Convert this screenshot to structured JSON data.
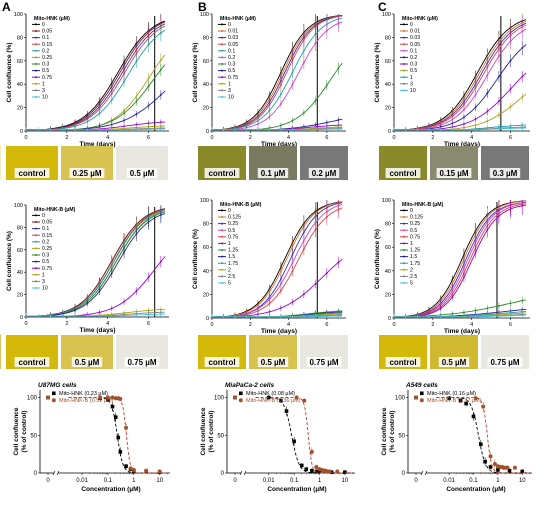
{
  "chart_data": [
    {
      "id": "A1",
      "panel_letter": "A",
      "type": "line",
      "legend_title": "Mito-HNK (µM)",
      "ylabel": "Cell confluence (%)",
      "xlabel": "Time (days)",
      "xlim": [
        0,
        7
      ],
      "ylim": [
        0,
        100
      ],
      "xticks": [
        "0",
        "2",
        "4",
        "6"
      ],
      "yticks": [
        "0",
        "20",
        "40",
        "60",
        "80",
        "100"
      ],
      "vline_x": 6.3,
      "series": [
        {
          "name": "0",
          "color": "#000000",
          "plateau": 100,
          "mid": 4.5,
          "k": 1.2
        },
        {
          "name": "0.05",
          "color": "#8B1A1A",
          "plateau": 100,
          "mid": 4.6,
          "k": 1.2
        },
        {
          "name": "0.1",
          "color": "#3030c0",
          "plateau": 99,
          "mid": 4.7,
          "k": 1.2
        },
        {
          "name": "0.15",
          "color": "#e04040",
          "plateau": 98,
          "mid": 4.8,
          "k": 1.2
        },
        {
          "name": "0.2",
          "color": "#20a0a0",
          "plateau": 96,
          "mid": 5.0,
          "k": 1.2
        },
        {
          "name": "0.25",
          "color": "#b0a020",
          "plateau": 90,
          "mid": 6.0,
          "k": 1.2
        },
        {
          "name": "0.3",
          "color": "#2a8a2a",
          "plateau": 86,
          "mid": 6.2,
          "k": 1.1
        },
        {
          "name": "0.5",
          "color": "#2020a0",
          "plateau": 75,
          "mid": 7.0,
          "k": 0.9
        },
        {
          "name": "0.75",
          "color": "#9900cc",
          "plateau": 9,
          "mid": 5,
          "k": 1.0
        },
        {
          "name": "1",
          "color": "#b8a000",
          "plateau": 5,
          "mid": 5,
          "k": 1.0
        },
        {
          "name": "3",
          "color": "#808080",
          "plateau": 3,
          "mid": 5,
          "k": 1.0
        },
        {
          "name": "10",
          "color": "#40c0e0",
          "plateau": 2,
          "mid": 5,
          "k": 1.0
        }
      ],
      "images": [
        "control",
        "0.25 µM",
        "0.5 µM"
      ],
      "image_colors": [
        "#d4b80a",
        "#d8c250",
        "#e8e8e0"
      ]
    },
    {
      "id": "A2",
      "type": "line",
      "legend_title": "Mito-HNK-B (µM)",
      "ylabel": "Cell confluence (%)",
      "xlabel": "Time (days)",
      "xlim": [
        0,
        7
      ],
      "ylim": [
        0,
        100
      ],
      "xticks": [
        "0",
        "2",
        "4",
        "6"
      ],
      "yticks": [
        "0",
        "20",
        "40",
        "60",
        "80",
        "100"
      ],
      "vline_x": 6.3,
      "series": [
        {
          "name": "0",
          "color": "#000000",
          "plateau": 100,
          "mid": 4.2,
          "k": 1.3
        },
        {
          "name": "0.05",
          "color": "#8B1A1A",
          "plateau": 100,
          "mid": 4.2,
          "k": 1.3
        },
        {
          "name": "0.1",
          "color": "#3030c0",
          "plateau": 100,
          "mid": 4.3,
          "k": 1.3
        },
        {
          "name": "0.15",
          "color": "#e04040",
          "plateau": 100,
          "mid": 4.3,
          "k": 1.3
        },
        {
          "name": "0.2",
          "color": "#20a0a0",
          "plateau": 99,
          "mid": 4.3,
          "k": 1.3
        },
        {
          "name": "0.25",
          "color": "#b0a020",
          "plateau": 99,
          "mid": 4.4,
          "k": 1.3
        },
        {
          "name": "0.3",
          "color": "#2a8a2a",
          "plateau": 98,
          "mid": 4.4,
          "k": 1.3
        },
        {
          "name": "0.5",
          "color": "#2020a0",
          "plateau": 97,
          "mid": 4.5,
          "k": 1.3
        },
        {
          "name": "0.75",
          "color": "#9900cc",
          "plateau": 85,
          "mid": 6.3,
          "k": 1.1
        },
        {
          "name": "1",
          "color": "#b8a000",
          "plateau": 8,
          "mid": 5,
          "k": 1.0
        },
        {
          "name": "3",
          "color": "#808080",
          "plateau": 5,
          "mid": 5,
          "k": 1.0
        },
        {
          "name": "10",
          "color": "#40c0e0",
          "plateau": 3,
          "mid": 5,
          "k": 1.0
        }
      ],
      "images": [
        "control",
        "0.5 µM",
        "0.75 µM"
      ],
      "image_colors": [
        "#d4b80a",
        "#d8c250",
        "#e8e8e0"
      ]
    },
    {
      "id": "B1",
      "panel_letter": "B",
      "type": "line",
      "legend_title": "Mito-HNK (µM)",
      "ylabel": "Cell confluence (%)",
      "xlabel": "Time (days)",
      "xlim": [
        0,
        7
      ],
      "ylim": [
        0,
        100
      ],
      "xticks": [
        "0",
        "2",
        "4",
        "6"
      ],
      "yticks": [
        "0",
        "20",
        "40",
        "60",
        "80",
        "100"
      ],
      "vline_x": 5.5,
      "series": [
        {
          "name": "0",
          "color": "#000000",
          "plateau": 100,
          "mid": 3.6,
          "k": 1.4
        },
        {
          "name": "0.01",
          "color": "#e07020",
          "plateau": 100,
          "mid": 3.7,
          "k": 1.4
        },
        {
          "name": "0.03",
          "color": "#3030c0",
          "plateau": 100,
          "mid": 3.8,
          "k": 1.4
        },
        {
          "name": "0.05",
          "color": "#e04040",
          "plateau": 100,
          "mid": 3.9,
          "k": 1.4
        },
        {
          "name": "0.1",
          "color": "#20a0a0",
          "plateau": 100,
          "mid": 4.2,
          "k": 1.3
        },
        {
          "name": "0.2",
          "color": "#cc44cc",
          "plateau": 98,
          "mid": 4.5,
          "k": 1.3
        },
        {
          "name": "0.3",
          "color": "#2a8a2a",
          "plateau": 88,
          "mid": 6.2,
          "k": 1.1
        },
        {
          "name": "0.5",
          "color": "#2020a0",
          "plateau": 18,
          "mid": 6.5,
          "k": 0.8
        },
        {
          "name": "0.75",
          "color": "#9900cc",
          "plateau": 6,
          "mid": 5,
          "k": 1.0
        },
        {
          "name": "1",
          "color": "#b8a000",
          "plateau": 4,
          "mid": 5,
          "k": 1.0
        },
        {
          "name": "3",
          "color": "#808080",
          "plateau": 3,
          "mid": 5,
          "k": 1.0
        },
        {
          "name": "10",
          "color": "#40c0e0",
          "plateau": 2,
          "mid": 5,
          "k": 1.0
        }
      ],
      "images": [
        "control",
        "0.1 µM",
        "0.2 µM"
      ],
      "image_colors": [
        "#8a8a2a",
        "#7a7a60",
        "#787878"
      ]
    },
    {
      "id": "B2",
      "type": "line",
      "legend_title": "Mito-HNK-B (µM)",
      "ylabel": "Cell confluence (%)",
      "xlabel": "Time (days)",
      "xlim": [
        0,
        7
      ],
      "ylim": [
        0,
        100
      ],
      "xticks": [
        "0",
        "2",
        "4",
        "6"
      ],
      "yticks": [
        "0",
        "20",
        "40",
        "60",
        "80",
        "100"
      ],
      "vline_x": 5.5,
      "series": [
        {
          "name": "0",
          "color": "#000000",
          "plateau": 100,
          "mid": 3.8,
          "k": 1.4
        },
        {
          "name": "0.125",
          "color": "#e07020",
          "plateau": 100,
          "mid": 3.9,
          "k": 1.4
        },
        {
          "name": "0.25",
          "color": "#3030c0",
          "plateau": 100,
          "mid": 4.1,
          "k": 1.4
        },
        {
          "name": "0.5",
          "color": "#cc44cc",
          "plateau": 100,
          "mid": 4.3,
          "k": 1.3
        },
        {
          "name": "0.75",
          "color": "#e04040",
          "plateau": 98,
          "mid": 4.5,
          "k": 1.3
        },
        {
          "name": "1",
          "color": "#9900cc",
          "plateau": 70,
          "mid": 5.8,
          "k": 0.9
        },
        {
          "name": "1.25",
          "color": "#2a8a2a",
          "plateau": 7,
          "mid": 5,
          "k": 1.0
        },
        {
          "name": "1.5",
          "color": "#2020a0",
          "plateau": 6,
          "mid": 5,
          "k": 1.0
        },
        {
          "name": "1.75",
          "color": "#20a0a0",
          "plateau": 5,
          "mid": 5,
          "k": 1.0
        },
        {
          "name": "2",
          "color": "#b8a000",
          "plateau": 4,
          "mid": 5,
          "k": 1.0
        },
        {
          "name": "2.5",
          "color": "#808080",
          "plateau": 3,
          "mid": 5,
          "k": 1.0
        },
        {
          "name": "5",
          "color": "#40c0e0",
          "plateau": 2,
          "mid": 5,
          "k": 1.0
        }
      ],
      "images": [
        "control",
        "0.5 µM",
        "0.75 µM"
      ],
      "image_colors": [
        "#d4b80a",
        "#d8c250",
        "#e8e8e0"
      ]
    },
    {
      "id": "C1",
      "panel_letter": "C",
      "type": "line",
      "legend_title": "Mito-HNK (µM)",
      "ylabel": "Cell confluence (%)",
      "xlabel": "Time (days)",
      "xlim": [
        0,
        7
      ],
      "ylim": [
        0,
        100
      ],
      "xticks": [
        "0",
        "2",
        "4",
        "6"
      ],
      "yticks": [
        "0",
        "20",
        "40",
        "60",
        "80",
        "100"
      ],
      "vline_x": 5.5,
      "series": [
        {
          "name": "0",
          "color": "#000000",
          "plateau": 100,
          "mid": 4.3,
          "k": 1.2
        },
        {
          "name": "0.01",
          "color": "#e07020",
          "plateau": 99,
          "mid": 4.4,
          "k": 1.2
        },
        {
          "name": "0.03",
          "color": "#3030c0",
          "plateau": 98,
          "mid": 4.5,
          "k": 1.2
        },
        {
          "name": "0.05",
          "color": "#e04040",
          "plateau": 97,
          "mid": 4.6,
          "k": 1.2
        },
        {
          "name": "0.1",
          "color": "#cc44cc",
          "plateau": 95,
          "mid": 4.8,
          "k": 1.2
        },
        {
          "name": "0.2",
          "color": "#2020a0",
          "plateau": 88,
          "mid": 5.3,
          "k": 1.1
        },
        {
          "name": "0.3",
          "color": "#9900cc",
          "plateau": 72,
          "mid": 6.0,
          "k": 1.0
        },
        {
          "name": "0.5",
          "color": "#b0a020",
          "plateau": 55,
          "mid": 6.5,
          "k": 1.0
        },
        {
          "name": "1",
          "color": "#20a0a0",
          "plateau": 6,
          "mid": 5,
          "k": 1.0
        },
        {
          "name": "3",
          "color": "#808080",
          "plateau": 4,
          "mid": 5,
          "k": 1.0
        },
        {
          "name": "10",
          "color": "#40c0e0",
          "plateau": 3,
          "mid": 5,
          "k": 1.0
        }
      ],
      "images": [
        "control",
        "0.15 µM",
        "0.3 µM"
      ],
      "image_colors": [
        "#8a8a2a",
        "#8a8a70",
        "#787878"
      ]
    },
    {
      "id": "C2",
      "type": "line",
      "legend_title": "Mito-HNK-B (µM)",
      "ylabel": "Cell confluence (%)",
      "xlabel": "Time (days)",
      "xlim": [
        0,
        7
      ],
      "ylim": [
        0,
        100
      ],
      "xticks": [
        "0",
        "2",
        "4",
        "6"
      ],
      "yticks": [
        "0",
        "20",
        "40",
        "60",
        "80",
        "100"
      ],
      "vline_x": 5.3,
      "series": [
        {
          "name": "0",
          "color": "#000000",
          "plateau": 100,
          "mid": 3.5,
          "k": 1.5
        },
        {
          "name": "0.125",
          "color": "#e07020",
          "plateau": 100,
          "mid": 3.6,
          "k": 1.5
        },
        {
          "name": "0.25",
          "color": "#3030c0",
          "plateau": 99,
          "mid": 3.7,
          "k": 1.5
        },
        {
          "name": "0.5",
          "color": "#cc44cc",
          "plateau": 99,
          "mid": 3.8,
          "k": 1.5
        },
        {
          "name": "0.75",
          "color": "#e04040",
          "plateau": 98,
          "mid": 3.9,
          "k": 1.5
        },
        {
          "name": "1",
          "color": "#9900cc",
          "plateau": 97,
          "mid": 4.0,
          "k": 1.5
        },
        {
          "name": "1.25",
          "color": "#2a8a2a",
          "plateau": 25,
          "mid": 6.0,
          "k": 0.6
        },
        {
          "name": "1.5",
          "color": "#2020a0",
          "plateau": 12,
          "mid": 6.0,
          "k": 0.6
        },
        {
          "name": "1.75",
          "color": "#20a0a0",
          "plateau": 9,
          "mid": 6.0,
          "k": 0.6
        },
        {
          "name": "2",
          "color": "#b8a000",
          "plateau": 7,
          "mid": 6.0,
          "k": 0.6
        },
        {
          "name": "2.5",
          "color": "#808080",
          "plateau": 5,
          "mid": 6.0,
          "k": 0.6
        },
        {
          "name": "5",
          "color": "#40c0e0",
          "plateau": 4,
          "mid": 6.0,
          "k": 0.6
        }
      ],
      "images": [
        "control",
        "0.5 µM",
        "0.75 µM"
      ],
      "image_colors": [
        "#d4b80a",
        "#d0b830",
        "#e8e8e0"
      ]
    },
    {
      "id": "A3",
      "type": "scatter",
      "title": "U87MG cells",
      "ylabel": "Cell confluence\n(% of control)",
      "xlabel": "Concentration (µM)",
      "xticks": [
        "0",
        "0.01",
        "0.1",
        "1",
        "10"
      ],
      "yticks": [
        "0",
        "50",
        "100"
      ],
      "ylim": [
        0,
        110
      ],
      "series": [
        {
          "name": "Mito-HNK (0.23 µM)",
          "color": "#000000",
          "ic50": 0.23,
          "hill": 4,
          "x": [
            0.05,
            0.1,
            0.15,
            0.2,
            0.25,
            0.3,
            0.5,
            0.75,
            1,
            3,
            10
          ],
          "y": [
            99,
            97,
            88,
            74,
            47,
            28,
            9,
            5,
            3,
            2,
            1
          ]
        },
        {
          "name": "Mito-HNK-B (0.52 µM)",
          "color": "#a0522d",
          "ic50": 0.52,
          "hill": 6,
          "x": [
            0.05,
            0.1,
            0.15,
            0.2,
            0.25,
            0.3,
            0.5,
            0.75,
            1,
            3,
            10
          ],
          "y": [
            100,
            100,
            100,
            99,
            99,
            98,
            60,
            6,
            4,
            3,
            2
          ]
        }
      ]
    },
    {
      "id": "B3",
      "type": "scatter",
      "title": "MiaPaCa-2 cells",
      "ylabel": "Cell confluence\n(% of control)",
      "xlabel": "Concentration (µM)",
      "xticks": [
        "0",
        "0.01",
        "0.1",
        "1",
        "10"
      ],
      "yticks": [
        "0",
        "50",
        "100"
      ],
      "ylim": [
        0,
        110
      ],
      "series": [
        {
          "name": "Mito-HNK (0.08 µM)",
          "color": "#000000",
          "ic50": 0.08,
          "hill": 3,
          "x": [
            0.01,
            0.03,
            0.05,
            0.1,
            0.2,
            0.3,
            0.5,
            0.75,
            1,
            3,
            10
          ],
          "y": [
            100,
            96,
            82,
            42,
            10,
            5,
            3,
            2,
            2,
            1,
            1
          ]
        },
        {
          "name": "Mito-HNK-B (0.36 µM)",
          "color": "#a0522d",
          "ic50": 0.36,
          "hill": 6,
          "x": [
            0.125,
            0.25,
            0.5,
            0.75,
            1,
            1.25,
            1.5,
            1.75,
            2,
            2.5,
            5
          ],
          "y": [
            100,
            96,
            28,
            8,
            5,
            4,
            3,
            3,
            2,
            2,
            2
          ]
        }
      ]
    },
    {
      "id": "C3",
      "type": "scatter",
      "title": "A549 cells",
      "ylabel": "Cell confluence\n(% of control)",
      "xlabel": "Concentration (µM)",
      "xticks": [
        "0",
        "0.01",
        "0.1",
        "1",
        "10"
      ],
      "yticks": [
        "0",
        "50",
        "100"
      ],
      "ylim": [
        0,
        110
      ],
      "series": [
        {
          "name": "Mito-HNK (0.16 µM)",
          "color": "#000000",
          "ic50": 0.16,
          "hill": 3,
          "x": [
            0.01,
            0.03,
            0.05,
            0.1,
            0.2,
            0.3,
            0.5,
            1,
            3,
            10
          ],
          "y": [
            99,
            96,
            92,
            75,
            38,
            15,
            8,
            4,
            3,
            2
          ]
        },
        {
          "name": "Mito-HNK-B (0.37 µM)",
          "color": "#a0522d",
          "ic50": 0.37,
          "hill": 5,
          "x": [
            0.125,
            0.25,
            0.5,
            0.75,
            1,
            1.25,
            1.5,
            1.75,
            2,
            2.5,
            5
          ],
          "y": [
            99,
            88,
            22,
            12,
            9,
            8,
            8,
            7,
            7,
            7,
            7
          ]
        }
      ]
    }
  ]
}
